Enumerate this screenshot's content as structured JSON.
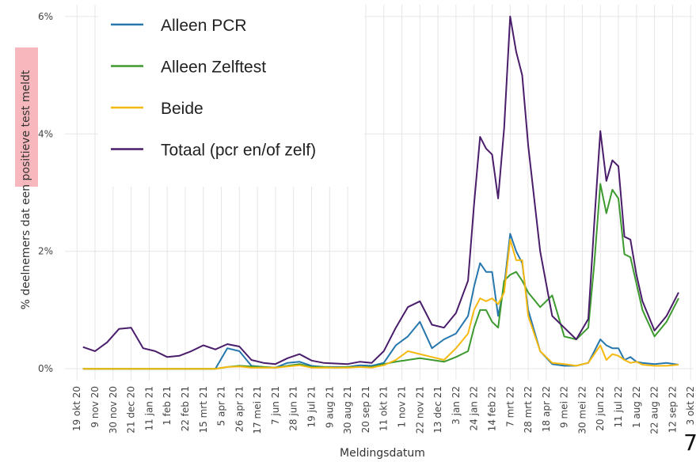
{
  "chart_data": {
    "type": "line",
    "xlabel": "Meldingsdatum",
    "ylabel": "% deelnemers dat een positieve test meldt",
    "page_number": "7",
    "legend_position": "top-left",
    "grid": true,
    "x": [
      1,
      3,
      5,
      7,
      9,
      11,
      13,
      15,
      17,
      19,
      21,
      23,
      25,
      27,
      29,
      31,
      33,
      35,
      37,
      39,
      41,
      43,
      45,
      47,
      49,
      51,
      53,
      55,
      57,
      59,
      61,
      63,
      65,
      66,
      67,
      68,
      69,
      70,
      71,
      72,
      73,
      74,
      75,
      77,
      79,
      81,
      83,
      85,
      86,
      87,
      88,
      89,
      90,
      91,
      92,
      93,
      94,
      96,
      98,
      100
    ],
    "xlim": [
      -2,
      102.5
    ],
    "xticks": [
      {
        "value": 0,
        "label": "19 okt 20"
      },
      {
        "value": 3,
        "label": "9 nov 20"
      },
      {
        "value": 6,
        "label": "30 nov 20"
      },
      {
        "value": 9,
        "label": "21 dec 20"
      },
      {
        "value": 12,
        "label": "11 jan 21"
      },
      {
        "value": 15,
        "label": "1 feb 21"
      },
      {
        "value": 18,
        "label": "22 feb 21"
      },
      {
        "value": 21,
        "label": "15 mrt 21"
      },
      {
        "value": 24,
        "label": "5 apr 21"
      },
      {
        "value": 27,
        "label": "26 apr 21"
      },
      {
        "value": 30,
        "label": "17 mei 21"
      },
      {
        "value": 33,
        "label": "7 jun 21"
      },
      {
        "value": 36,
        "label": "28 jun 21"
      },
      {
        "value": 39,
        "label": "19 jul 21"
      },
      {
        "value": 42,
        "label": "9 aug 21"
      },
      {
        "value": 45,
        "label": "30 aug 21"
      },
      {
        "value": 48,
        "label": "20 sep 21"
      },
      {
        "value": 51,
        "label": "11 okt 21"
      },
      {
        "value": 54,
        "label": "1 nov 21"
      },
      {
        "value": 57,
        "label": "22 nov 21"
      },
      {
        "value": 60,
        "label": "13 dec 21"
      },
      {
        "value": 63,
        "label": "3 jan 22"
      },
      {
        "value": 66,
        "label": "24 jan 22"
      },
      {
        "value": 69,
        "label": "14 feb 22"
      },
      {
        "value": 72,
        "label": "7 mrt 22"
      },
      {
        "value": 75,
        "label": "28 mrt 22"
      },
      {
        "value": 78,
        "label": "18 apr 22"
      },
      {
        "value": 81,
        "label": "9 mei 22"
      },
      {
        "value": 84,
        "label": "30 mei 22"
      },
      {
        "value": 87,
        "label": "20 jun 22"
      },
      {
        "value": 90,
        "label": "11 jul 22"
      },
      {
        "value": 93,
        "label": "1 aug 22"
      },
      {
        "value": 96,
        "label": "22 aug 22"
      },
      {
        "value": 99,
        "label": "12 sep 22"
      },
      {
        "value": 102,
        "label": "3 okt 22"
      }
    ],
    "ylim": [
      -0.2,
      6.2
    ],
    "yticks": [
      {
        "value": 0,
        "label": "0%"
      },
      {
        "value": 2,
        "label": "2%"
      },
      {
        "value": 4,
        "label": "4%"
      },
      {
        "value": 6,
        "label": "6%"
      }
    ],
    "series": [
      {
        "name": "Alleen PCR",
        "color": "#2677ad",
        "values": [
          0,
          0,
          0,
          0,
          0,
          0,
          0,
          0,
          0,
          0,
          0,
          0,
          0.35,
          0.3,
          0.05,
          0.03,
          0.02,
          0.1,
          0.12,
          0.05,
          0.03,
          0.03,
          0.03,
          0.06,
          0.05,
          0.1,
          0.4,
          0.55,
          0.8,
          0.35,
          0.5,
          0.6,
          0.9,
          1.4,
          1.8,
          1.65,
          1.65,
          0.9,
          1.4,
          2.3,
          2.0,
          1.8,
          1.0,
          0.3,
          0.08,
          0.05,
          0.05,
          0.1,
          0.3,
          0.5,
          0.4,
          0.35,
          0.35,
          0.15,
          0.2,
          0.12,
          0.1,
          0.08,
          0.1,
          0.07
        ]
      },
      {
        "name": "Alleen Zelftest",
        "color": "#3d9a2f",
        "values": [
          0,
          0,
          0,
          0,
          0,
          0,
          0,
          0,
          0,
          0,
          0,
          0,
          0.03,
          0.05,
          0.04,
          0.03,
          0.02,
          0.05,
          0.08,
          0.03,
          0.03,
          0.02,
          0.03,
          0.03,
          0.03,
          0.08,
          0.12,
          0.15,
          0.18,
          0.15,
          0.12,
          0.2,
          0.3,
          0.7,
          1.0,
          1.0,
          0.8,
          0.7,
          1.5,
          1.6,
          1.65,
          1.5,
          1.3,
          1.05,
          1.25,
          0.55,
          0.5,
          0.7,
          1.8,
          3.15,
          2.65,
          3.05,
          2.9,
          1.95,
          1.9,
          1.45,
          1.0,
          0.55,
          0.8,
          1.2
        ]
      },
      {
        "name": "Beide",
        "color": "#f6b90f",
        "values": [
          0,
          0,
          0,
          0,
          0,
          0,
          0,
          0,
          0,
          0,
          0,
          0,
          0.03,
          0.04,
          0.02,
          0.02,
          0.02,
          0.04,
          0.06,
          0.02,
          0.02,
          0.02,
          0.02,
          0.03,
          0.02,
          0.06,
          0.15,
          0.3,
          0.25,
          0.2,
          0.15,
          0.35,
          0.6,
          1.0,
          1.2,
          1.15,
          1.2,
          1.1,
          1.3,
          2.2,
          1.85,
          1.85,
          0.9,
          0.3,
          0.1,
          0.08,
          0.05,
          0.1,
          0.25,
          0.4,
          0.15,
          0.25,
          0.22,
          0.15,
          0.1,
          0.12,
          0.07,
          0.05,
          0.05,
          0.07
        ]
      },
      {
        "name": "Totaal (pcr en/of zelf)",
        "color": "#4a1d6b",
        "values": [
          0.37,
          0.3,
          0.45,
          0.68,
          0.7,
          0.35,
          0.3,
          0.2,
          0.22,
          0.3,
          0.4,
          0.33,
          0.42,
          0.38,
          0.15,
          0.1,
          0.08,
          0.18,
          0.25,
          0.14,
          0.1,
          0.09,
          0.08,
          0.12,
          0.1,
          0.3,
          0.7,
          1.05,
          1.15,
          0.75,
          0.7,
          0.95,
          1.5,
          2.8,
          3.95,
          3.75,
          3.65,
          2.9,
          4.1,
          6.0,
          5.4,
          5.0,
          3.8,
          2.0,
          0.9,
          0.7,
          0.5,
          0.85,
          2.5,
          4.05,
          3.2,
          3.55,
          3.45,
          2.25,
          2.2,
          1.6,
          1.15,
          0.65,
          0.9,
          1.3
        ]
      }
    ]
  }
}
